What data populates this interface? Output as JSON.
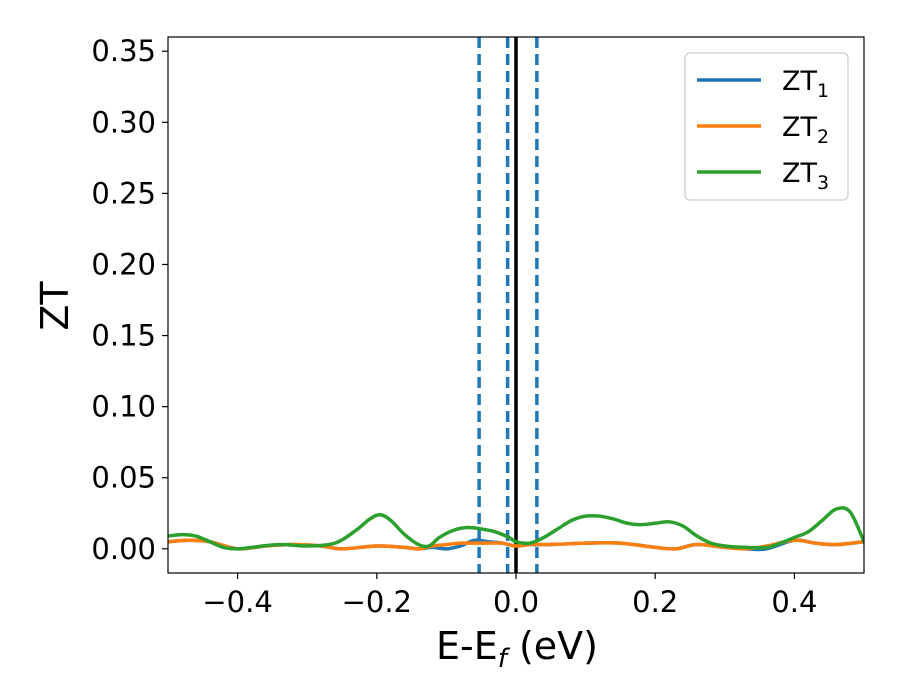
{
  "chart_data": {
    "type": "line",
    "xlabel": {
      "main": "E-E",
      "sub": "f",
      "suffix": " (eV)"
    },
    "ylabel": "ZT",
    "xlim": [
      -0.5,
      0.5
    ],
    "ylim": [
      -0.017,
      0.36
    ],
    "xticks": [
      -0.4,
      -0.2,
      0.0,
      0.2,
      0.4
    ],
    "xtick_labels": [
      "−0.4",
      "−0.2",
      "0.0",
      "0.2",
      "0.4"
    ],
    "yticks": [
      0.0,
      0.05,
      0.1,
      0.15,
      0.2,
      0.25,
      0.3,
      0.35
    ],
    "ytick_labels": [
      "0.00",
      "0.05",
      "0.10",
      "0.15",
      "0.20",
      "0.25",
      "0.30",
      "0.35"
    ],
    "grid": false,
    "legend_position": "top-right",
    "vertical_lines": [
      {
        "x": 0.0,
        "style": "solid",
        "color": "#000000"
      },
      {
        "x": -0.053,
        "style": "dashed",
        "color": "#1f77b4"
      },
      {
        "x": -0.012,
        "style": "dashed",
        "color": "#1f77b4"
      },
      {
        "x": 0.03,
        "style": "dashed",
        "color": "#1f77b4"
      }
    ],
    "series": [
      {
        "name": "ZT",
        "name_sub": "1",
        "color": "#1f77b4",
        "x": [
          -0.5,
          -0.47,
          -0.44,
          -0.4,
          -0.36,
          -0.32,
          -0.28,
          -0.25,
          -0.2,
          -0.16,
          -0.14,
          -0.12,
          -0.1,
          -0.08,
          -0.06,
          -0.04,
          -0.02,
          0.0,
          0.02,
          0.05,
          0.1,
          0.15,
          0.2,
          0.23,
          0.26,
          0.3,
          0.33,
          0.36,
          0.4,
          0.43,
          0.46,
          0.5
        ],
        "y": [
          0.005,
          0.006,
          0.005,
          0.0,
          0.002,
          0.003,
          0.002,
          0.0,
          0.002,
          0.001,
          0.0,
          0.001,
          0.0,
          0.002,
          0.006,
          0.005,
          0.004,
          0.002,
          0.003,
          0.003,
          0.004,
          0.004,
          0.001,
          0.0,
          0.003,
          0.001,
          0.0,
          0.0,
          0.006,
          0.004,
          0.003,
          0.005
        ]
      },
      {
        "name": "ZT",
        "name_sub": "2",
        "color": "#ff7f0e",
        "x": [
          -0.5,
          -0.47,
          -0.44,
          -0.4,
          -0.36,
          -0.32,
          -0.28,
          -0.25,
          -0.2,
          -0.16,
          -0.14,
          -0.12,
          -0.1,
          -0.08,
          -0.06,
          -0.04,
          -0.02,
          0.0,
          0.02,
          0.05,
          0.1,
          0.15,
          0.2,
          0.23,
          0.26,
          0.3,
          0.33,
          0.36,
          0.4,
          0.43,
          0.46,
          0.5
        ],
        "y": [
          0.005,
          0.006,
          0.005,
          0.0,
          0.002,
          0.003,
          0.002,
          0.0,
          0.002,
          0.001,
          0.0,
          0.002,
          0.003,
          0.004,
          0.004,
          0.004,
          0.004,
          0.002,
          0.003,
          0.003,
          0.004,
          0.004,
          0.001,
          0.0,
          0.003,
          0.001,
          0.0,
          0.002,
          0.006,
          0.004,
          0.003,
          0.005
        ]
      },
      {
        "name": "ZT",
        "name_sub": "3",
        "color": "#2ca02c",
        "x": [
          -0.5,
          -0.48,
          -0.46,
          -0.44,
          -0.42,
          -0.4,
          -0.38,
          -0.34,
          -0.3,
          -0.26,
          -0.23,
          -0.21,
          -0.195,
          -0.18,
          -0.16,
          -0.14,
          -0.125,
          -0.11,
          -0.09,
          -0.07,
          -0.05,
          -0.03,
          -0.01,
          0.0,
          0.02,
          0.04,
          0.06,
          0.08,
          0.1,
          0.12,
          0.14,
          0.16,
          0.18,
          0.2,
          0.22,
          0.24,
          0.26,
          0.28,
          0.3,
          0.33,
          0.36,
          0.38,
          0.4,
          0.42,
          0.44,
          0.46,
          0.48,
          0.5
        ],
        "y": [
          0.009,
          0.01,
          0.009,
          0.005,
          0.001,
          0.0,
          0.001,
          0.003,
          0.002,
          0.004,
          0.013,
          0.021,
          0.024,
          0.02,
          0.01,
          0.003,
          0.002,
          0.008,
          0.013,
          0.015,
          0.014,
          0.012,
          0.008,
          0.005,
          0.004,
          0.008,
          0.014,
          0.02,
          0.023,
          0.023,
          0.021,
          0.018,
          0.017,
          0.018,
          0.019,
          0.016,
          0.009,
          0.004,
          0.002,
          0.001,
          0.001,
          0.004,
          0.008,
          0.012,
          0.02,
          0.028,
          0.026,
          0.005
        ]
      }
    ]
  }
}
